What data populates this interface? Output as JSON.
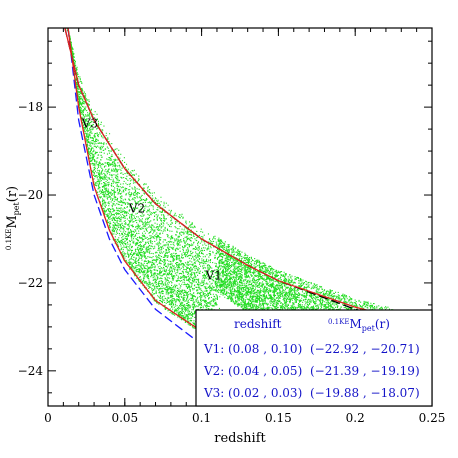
{
  "chart_data": {
    "type": "scatter",
    "xlabel": "redshift",
    "ylabel": "0.1KEM_pet(r)",
    "ylabel_main": "M",
    "ylabel_pre": "0.1KE",
    "ylabel_sub": "pet",
    "ylabel_post": "(r)",
    "xlim": [
      0,
      0.25
    ],
    "ylim": [
      -16.2,
      -24.8
    ],
    "x_ticks": [
      0,
      0.05,
      0.1,
      0.15,
      0.2,
      0.25
    ],
    "x_tick_labels": [
      "0",
      "0.05",
      "0.1",
      "0.15",
      "0.2",
      "0.25"
    ],
    "y_ticks": [
      -18,
      -20,
      -22,
      -24
    ],
    "y_tick_labels": [
      "−18",
      "−20",
      "−22",
      "−24"
    ],
    "point_color": "#22dd22",
    "curves": [
      {
        "style": "blue-dashed",
        "color": "#1a1aff",
        "points": [
          [
            0.013,
            -16.2
          ],
          [
            0.02,
            -18.3
          ],
          [
            0.03,
            -20.0
          ],
          [
            0.04,
            -21.0
          ],
          [
            0.05,
            -21.7
          ],
          [
            0.07,
            -22.6
          ],
          [
            0.1,
            -23.4
          ],
          [
            0.13,
            -24.1
          ],
          [
            0.15,
            -24.5
          ],
          [
            0.165,
            -24.8
          ]
        ]
      },
      {
        "style": "red-upper",
        "color": "#e02020",
        "points": [
          [
            0.013,
            -16.2
          ],
          [
            0.02,
            -18.0
          ],
          [
            0.03,
            -19.8
          ],
          [
            0.04,
            -20.8
          ],
          [
            0.05,
            -21.5
          ],
          [
            0.07,
            -22.4
          ],
          [
            0.1,
            -23.1
          ],
          [
            0.13,
            -23.6
          ],
          [
            0.16,
            -24.2
          ],
          [
            0.19,
            -24.8
          ]
        ]
      },
      {
        "style": "black-dashed",
        "color": "#000000",
        "points": [
          [
            0.011,
            -16.2
          ],
          [
            0.02,
            -17.5
          ],
          [
            0.03,
            -18.3
          ],
          [
            0.05,
            -19.4
          ],
          [
            0.07,
            -20.2
          ],
          [
            0.1,
            -21.0
          ],
          [
            0.13,
            -21.6
          ],
          [
            0.15,
            -21.95
          ],
          [
            0.2,
            -22.6
          ],
          [
            0.25,
            -23.05
          ]
        ]
      },
      {
        "style": "red-lower",
        "color": "#e02020",
        "points": [
          [
            0.011,
            -16.2
          ],
          [
            0.02,
            -17.5
          ],
          [
            0.03,
            -18.3
          ],
          [
            0.05,
            -19.4
          ],
          [
            0.07,
            -20.2
          ],
          [
            0.1,
            -21.0
          ],
          [
            0.13,
            -21.6
          ],
          [
            0.15,
            -21.95
          ],
          [
            0.2,
            -22.55
          ],
          [
            0.25,
            -23.0
          ]
        ]
      }
    ],
    "boxes": [
      {
        "label": "V1",
        "z": [
          0.08,
          0.1
        ],
        "M": [
          -22.92,
          -20.71
        ]
      },
      {
        "label": "V2",
        "z": [
          0.04,
          0.05
        ],
        "M": [
          -21.39,
          -19.19
        ]
      },
      {
        "label": "V3",
        "z": [
          0.02,
          0.03
        ],
        "M": [
          -19.88,
          -18.07
        ]
      }
    ],
    "legend": {
      "placement": "bottom-right",
      "header_col1": "redshift",
      "header_col2": "0.1KEM_pet(r)",
      "rows": [
        {
          "name": "V1:",
          "z_text": "(0.08 , 0.10)",
          "m_text": "(−22.92 , −20.71)"
        },
        {
          "name": "V2:",
          "z_text": "(0.04 , 0.05)",
          "m_text": "(−21.39 , −19.19)"
        },
        {
          "name": "V3:",
          "z_text": "(0.02 , 0.03)",
          "m_text": "(−19.88 , −18.07)"
        }
      ]
    }
  }
}
